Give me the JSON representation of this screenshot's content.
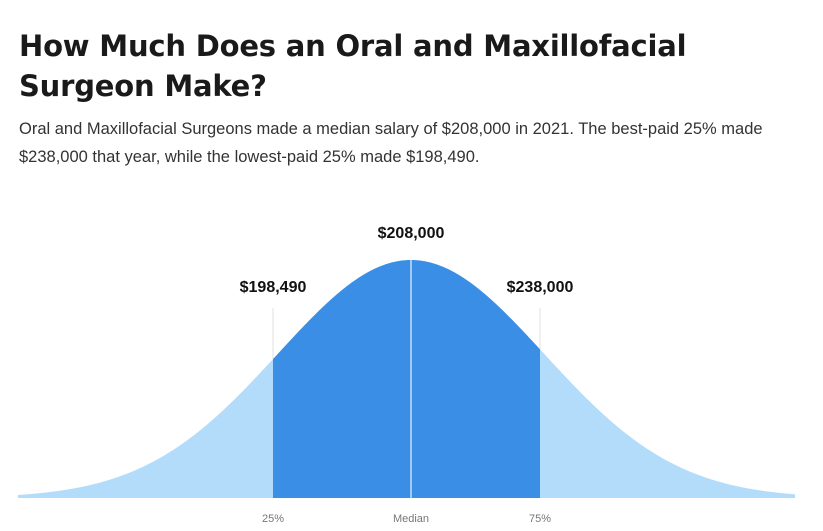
{
  "header": {
    "title": "How Much Does an Oral and Maxillofacial Surgeon Make?",
    "subtitle": "Oral and Maxillofacial Surgeons made a median salary of $208,000 in 2021. The best-paid 25% made $238,000 that year, while the lowest-paid 25% made $198,490."
  },
  "chart_data": {
    "type": "area",
    "title": "",
    "xlabel": "",
    "ylabel": "",
    "grid": false,
    "legend": "none",
    "markers": [
      {
        "tick": "25%",
        "value": 198490,
        "label": "$198,490"
      },
      {
        "tick": "Median",
        "value": 208000,
        "label": "$208,000"
      },
      {
        "tick": "75%",
        "value": 238000,
        "label": "$238,000"
      }
    ],
    "colors": {
      "outer": "#b3dcfb",
      "middle": "#3a8ee6",
      "divider": "#ffffff",
      "guide": "#e0e0e0"
    }
  }
}
